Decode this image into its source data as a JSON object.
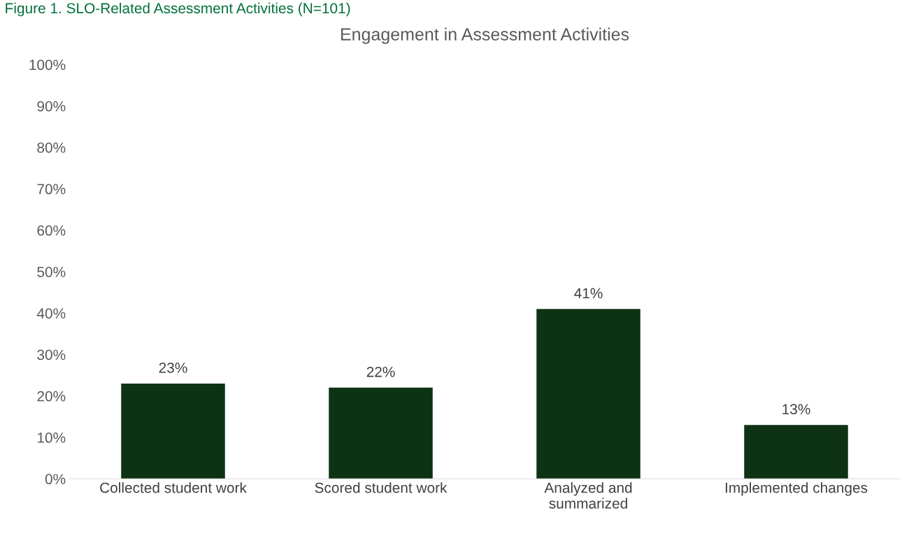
{
  "chart_data": {
    "type": "bar",
    "title": "Engagement in Assessment Activities",
    "annotations": [
      "Figure 1. SLO-Related Assessment Activities (N=101)"
    ],
    "categories": [
      "Collected student work",
      "Scored student work",
      "Analyzed and\nsummarized",
      "Implemented changes"
    ],
    "values": [
      23,
      22,
      41,
      13
    ],
    "color": "#0e3314",
    "ylim": [
      0,
      100
    ],
    "yticks": [
      {
        "value": 0,
        "label": "0%"
      },
      {
        "value": 10,
        "label": "10%"
      },
      {
        "value": 20,
        "label": "20%"
      },
      {
        "value": 30,
        "label": "30%"
      },
      {
        "value": 40,
        "label": "40%"
      },
      {
        "value": 50,
        "label": "50%"
      },
      {
        "value": 60,
        "label": "60%"
      },
      {
        "value": 70,
        "label": "70%"
      },
      {
        "value": 80,
        "label": "80%"
      },
      {
        "value": 90,
        "label": "90%"
      },
      {
        "value": 100,
        "label": "100%"
      }
    ],
    "value_labels": [
      "23%",
      "22%",
      "41%",
      "13%"
    ],
    "grid": false,
    "legend": false
  }
}
